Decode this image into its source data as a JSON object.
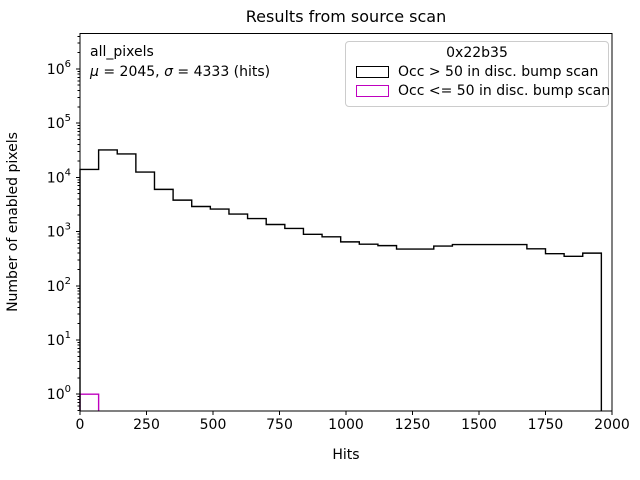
{
  "figure": {
    "title": "Results from source scan",
    "xlabel": "Hits",
    "ylabel": "Number of enabled pixels",
    "annotation": {
      "line1": "all_pixels",
      "line2": "μ = 2045, σ = 4333 (hits)",
      "line2_segments": [
        {
          "text": "μ",
          "italic": true
        },
        {
          "text": " = 2045, ",
          "italic": false
        },
        {
          "text": "σ",
          "italic": true
        },
        {
          "text": " = 4333 (hits)",
          "italic": false
        }
      ]
    },
    "legend": {
      "title": "0x22b35",
      "entries": [
        {
          "label": "Occ > 50 in disc. bump scan",
          "color": "#000000"
        },
        {
          "label": "Occ <= 50 in disc. bump scan",
          "color": "#bf00bf"
        }
      ]
    }
  },
  "colors": {
    "black_series": "#000000",
    "magenta_series": "#bf00bf",
    "legend_border": "#cccccc",
    "axes": "#000000",
    "background": "#ffffff"
  },
  "chart_data": {
    "type": "bar",
    "subtype": "step-histogram",
    "title": "Results from source scan",
    "xlabel": "Hits",
    "ylabel": "Number of enabled pixels",
    "x_axis": {
      "min": 0,
      "max": 2000,
      "ticks": [
        0,
        250,
        500,
        750,
        1000,
        1250,
        1500,
        1750,
        2000
      ]
    },
    "y_axis": {
      "scale": "log",
      "min": 0.49,
      "max": 4500000,
      "tick_exponents": [
        0,
        1,
        2,
        3,
        4,
        5,
        6
      ]
    },
    "grid": false,
    "legend_position": "upper right",
    "bin_edges": [
      0,
      70,
      140,
      210,
      280,
      350,
      420,
      490,
      560,
      630,
      700,
      770,
      840,
      910,
      980,
      1050,
      1120,
      1190,
      1260,
      1330,
      1400,
      1470,
      1540,
      1610,
      1680,
      1750,
      1820,
      1890,
      1960
    ],
    "series": [
      {
        "name": "Occ > 50 in disc. bump scan",
        "color": "#000000",
        "values": [
          14000,
          32000,
          27000,
          12500,
          6000,
          3800,
          2900,
          2600,
          2100,
          1740,
          1350,
          1140,
          890,
          800,
          645,
          585,
          550,
          475,
          475,
          540,
          575,
          575,
          575,
          575,
          480,
          390,
          350,
          400
        ]
      },
      {
        "name": "Occ <= 50 in disc. bump scan",
        "color": "#bf00bf",
        "values": [
          1,
          0,
          0,
          0,
          0,
          0,
          0,
          0,
          0,
          0,
          0,
          0,
          0,
          0,
          0,
          0,
          0,
          0,
          0,
          0,
          0,
          0,
          0,
          0,
          0,
          0,
          0,
          0
        ]
      }
    ]
  }
}
